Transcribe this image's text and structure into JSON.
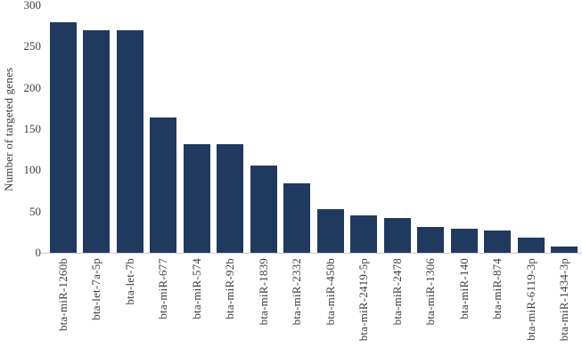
{
  "chart_data": {
    "type": "bar",
    "title": "",
    "xlabel": "",
    "ylabel": "Number of targeted genes",
    "categories": [
      "bta-miR-1260b",
      "bta-let-7a-5p",
      "bta-let-7b",
      "bta-miR-677",
      "bta-miR-574",
      "bta-miR-92b",
      "bta-miR-1839",
      "bta-miR-2332",
      "bta-miR-450b",
      "bta-miR-2419-5p",
      "bta-miR-2478",
      "bta-miR-1306",
      "bta-miR-140",
      "bta-miR-874",
      "bta-miR-6119-3p",
      "bta-miR-1434-3p"
    ],
    "values": [
      280,
      270,
      270,
      164,
      132,
      132,
      106,
      84,
      53,
      45,
      42,
      31,
      29,
      27,
      18,
      8
    ],
    "ylim": [
      0,
      300
    ],
    "yticks": [
      0,
      50,
      100,
      150,
      200,
      250,
      300
    ],
    "grid": false,
    "legend": false,
    "colors": {
      "bar": "#20395f",
      "text": "#3d3d3d",
      "axis_line": "#c9c9c9",
      "background": "#ffffff"
    }
  }
}
